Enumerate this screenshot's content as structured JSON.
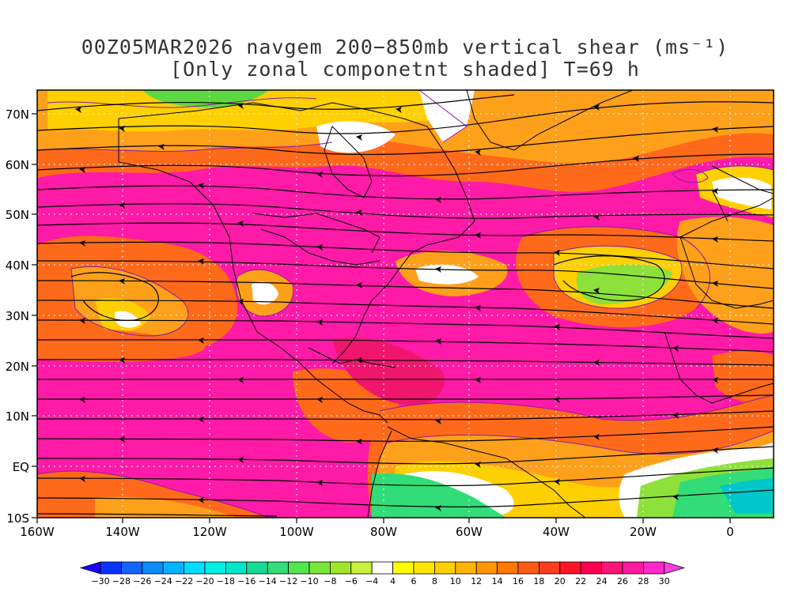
{
  "title": {
    "line1": "00Z05MAR2026 navgem 200−850mb vertical shear (ms⁻¹)",
    "line2": "[Only zonal componetnt shaded] T=69 h"
  },
  "map": {
    "lat_labels": [
      "70N",
      "60N",
      "50N",
      "40N",
      "30N",
      "20N",
      "10N",
      "EQ",
      "10S"
    ],
    "lon_labels": [
      "160W",
      "140W",
      "120W",
      "100W",
      "80W",
      "60W",
      "40W",
      "20W",
      "0"
    ],
    "lon_range": [
      -160,
      10
    ],
    "lat_range": [
      -10,
      75
    ],
    "colors": {
      "strong": "#ff1aa8",
      "high": "#f0166e",
      "moderate": "#ff6a1a",
      "mild": "#ffa01a",
      "weak": "#ffd000",
      "calm": "#ffffff",
      "neg_weak": "#8ee03a",
      "neg": "#32dc78",
      "neg_strong": "#00c8c8",
      "contour": "#8a1aa8",
      "coast": "#000000"
    }
  },
  "colorbar": {
    "labels": [
      "−30",
      "−28",
      "−26",
      "−24",
      "−22",
      "−20",
      "−18",
      "−16",
      "−14",
      "−12",
      "−10",
      "−8",
      "−6",
      "−4",
      "4",
      "6",
      "8",
      "10",
      "12",
      "14",
      "16",
      "18",
      "20",
      "22",
      "24",
      "26",
      "28",
      "30"
    ],
    "colors": [
      "#1e00ff",
      "#0a32ff",
      "#1464ff",
      "#0a8cff",
      "#00b4ff",
      "#00dcff",
      "#00f0e6",
      "#00e6c8",
      "#14dc96",
      "#32dc78",
      "#50e650",
      "#78e63c",
      "#a0e628",
      "#c8f03c",
      "#ffffff",
      "#ffff00",
      "#ffe600",
      "#ffd000",
      "#ffb400",
      "#ff9600",
      "#ff7800",
      "#ff5a14",
      "#ff3c1e",
      "#ff1428",
      "#ff0050",
      "#ff1478",
      "#ff1aa0",
      "#ff28c8",
      "#ff3cdc"
    ]
  }
}
